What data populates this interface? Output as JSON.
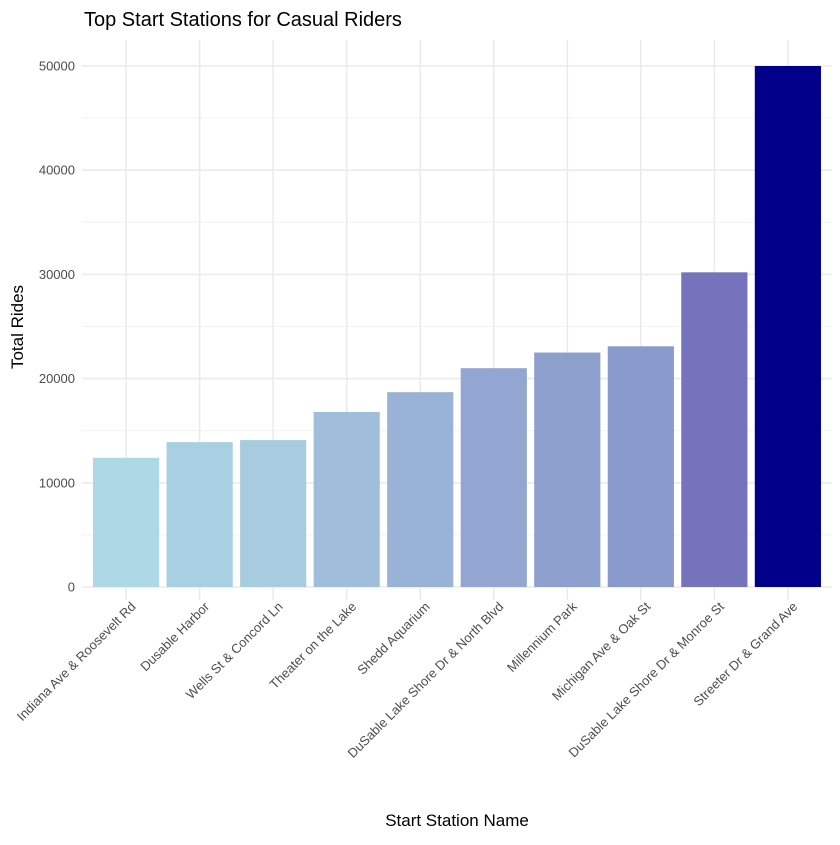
{
  "chart_data": {
    "type": "bar",
    "title": "Top Start Stations for Casual Riders",
    "xlabel": "Start Station Name",
    "ylabel": "Total Rides",
    "ylim": [
      0,
      52500
    ],
    "yticks": [
      0,
      10000,
      20000,
      30000,
      40000,
      50000
    ],
    "grid": true,
    "legend": "none",
    "categories": [
      "Indiana Ave & Roosevelt Rd",
      "Dusable Harbor",
      "Wells St & Concord Ln",
      "Theater on the Lake",
      "Shedd Aquarium",
      "DuSable Lake Shore Dr & North Blvd",
      "Millennium Park",
      "Michigan Ave & Oak St",
      "DuSable Lake Shore Dr & Monroe St",
      "Streeter Dr & Grand Ave"
    ],
    "values": [
      12400,
      13900,
      14100,
      16800,
      18700,
      21000,
      22500,
      23100,
      30200,
      50000
    ],
    "colors": [
      "#add8e6",
      "#a9cfe2",
      "#a7cce0",
      "#a0bedb",
      "#99b3d7",
      "#93a6d1",
      "#8d9fcd",
      "#8b9acc",
      "#7473bc",
      "#00008b"
    ]
  }
}
